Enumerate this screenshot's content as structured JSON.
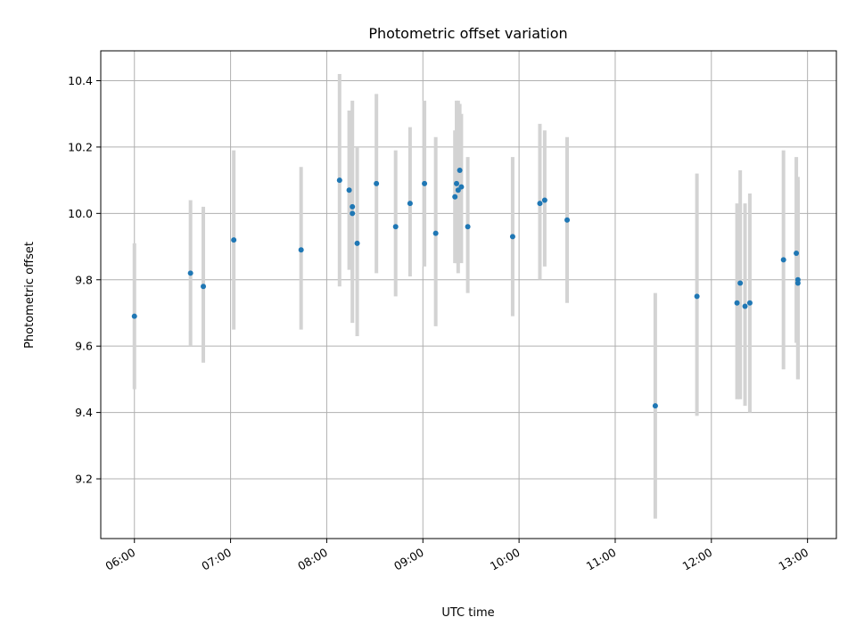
{
  "chart_data": {
    "type": "scatter",
    "title": "Photometric offset variation",
    "xlabel": "UTC time",
    "ylabel": "Photometric offset",
    "x_ticks": [
      "06:00",
      "07:00",
      "08:00",
      "09:00",
      "10:00",
      "11:00",
      "12:00",
      "13:00"
    ],
    "y_ticks": [
      "9.2",
      "9.4",
      "9.6",
      "9.8",
      "10.0",
      "10.2",
      "10.4"
    ],
    "xlim": [
      "05:39",
      "13:18"
    ],
    "ylim": [
      9.02,
      10.49
    ],
    "grid": true,
    "colors": {
      "point": "#1f77b4",
      "errorbar": "#d3d3d3",
      "grid": "#b0b0b0"
    },
    "series": [
      {
        "points": [
          {
            "x": "06:00",
            "y": 9.69,
            "ylo": 9.47,
            "yhi": 9.91
          },
          {
            "x": "06:35",
            "y": 9.82,
            "ylo": 9.6,
            "yhi": 10.04
          },
          {
            "x": "06:43",
            "y": 9.78,
            "ylo": 9.55,
            "yhi": 10.02
          },
          {
            "x": "07:02",
            "y": 9.92,
            "ylo": 9.65,
            "yhi": 10.19
          },
          {
            "x": "07:44",
            "y": 9.89,
            "ylo": 9.65,
            "yhi": 10.14
          },
          {
            "x": "08:08",
            "y": 10.1,
            "ylo": 9.78,
            "yhi": 10.42
          },
          {
            "x": "08:14",
            "y": 10.07,
            "ylo": 9.83,
            "yhi": 10.31
          },
          {
            "x": "08:16",
            "y": 10.02,
            "ylo": 9.67,
            "yhi": 10.34
          },
          {
            "x": "08:16",
            "y": 10.0,
            "ylo": 9.8,
            "yhi": 10.2
          },
          {
            "x": "08:19",
            "y": 9.91,
            "ylo": 9.63,
            "yhi": 10.2
          },
          {
            "x": "08:31",
            "y": 10.09,
            "ylo": 9.82,
            "yhi": 10.36
          },
          {
            "x": "08:43",
            "y": 9.96,
            "ylo": 9.75,
            "yhi": 10.19
          },
          {
            "x": "08:52",
            "y": 10.03,
            "ylo": 9.81,
            "yhi": 10.26
          },
          {
            "x": "09:01",
            "y": 10.09,
            "ylo": 9.84,
            "yhi": 10.34
          },
          {
            "x": "09:08",
            "y": 9.94,
            "ylo": 9.66,
            "yhi": 10.23
          },
          {
            "x": "09:20",
            "y": 10.05,
            "ylo": 9.85,
            "yhi": 10.25
          },
          {
            "x": "09:21",
            "y": 10.09,
            "ylo": 9.85,
            "yhi": 10.34
          },
          {
            "x": "09:22",
            "y": 10.07,
            "ylo": 9.82,
            "yhi": 10.34
          },
          {
            "x": "09:23",
            "y": 10.13,
            "ylo": 9.93,
            "yhi": 10.33
          },
          {
            "x": "09:24",
            "y": 10.08,
            "ylo": 9.85,
            "yhi": 10.3
          },
          {
            "x": "09:28",
            "y": 9.96,
            "ylo": 9.76,
            "yhi": 10.17
          },
          {
            "x": "09:56",
            "y": 9.93,
            "ylo": 9.69,
            "yhi": 10.17
          },
          {
            "x": "10:13",
            "y": 10.03,
            "ylo": 9.8,
            "yhi": 10.27
          },
          {
            "x": "10:16",
            "y": 10.04,
            "ylo": 9.84,
            "yhi": 10.25
          },
          {
            "x": "10:30",
            "y": 9.98,
            "ylo": 9.73,
            "yhi": 10.23
          },
          {
            "x": "11:25",
            "y": 9.42,
            "ylo": 9.08,
            "yhi": 9.76
          },
          {
            "x": "11:51",
            "y": 9.75,
            "ylo": 9.39,
            "yhi": 10.12
          },
          {
            "x": "12:16",
            "y": 9.73,
            "ylo": 9.44,
            "yhi": 10.03
          },
          {
            "x": "12:18",
            "y": 9.79,
            "ylo": 9.44,
            "yhi": 10.13
          },
          {
            "x": "12:21",
            "y": 9.72,
            "ylo": 9.42,
            "yhi": 10.03
          },
          {
            "x": "12:24",
            "y": 9.73,
            "ylo": 9.4,
            "yhi": 10.06
          },
          {
            "x": "12:45",
            "y": 9.86,
            "ylo": 9.53,
            "yhi": 10.19
          },
          {
            "x": "12:53",
            "y": 9.88,
            "ylo": 9.61,
            "yhi": 10.17
          },
          {
            "x": "12:54",
            "y": 9.8,
            "ylo": 9.5,
            "yhi": 10.11
          },
          {
            "x": "12:54",
            "y": 9.79,
            "ylo": 9.5,
            "yhi": 10.1
          }
        ]
      }
    ]
  }
}
